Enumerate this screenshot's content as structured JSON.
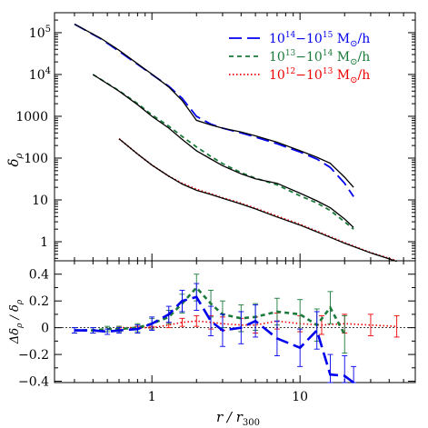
{
  "chart_data": [
    {
      "type": "line",
      "xscale": "log",
      "yscale": "log",
      "xlim": [
        0.22,
        60
      ],
      "ylim": [
        0.35,
        300000
      ],
      "ylabel_sym": "δ",
      "ylabel_sub": "ρ",
      "x_ticklabels_shown": false,
      "yticks": [
        {
          "value": 100000,
          "base": "10",
          "exp": "5"
        },
        {
          "value": 10000,
          "base": "10",
          "exp": "4"
        },
        {
          "value": 1000,
          "text": "1000"
        },
        {
          "value": 100,
          "text": "100"
        },
        {
          "value": 10,
          "text": "10"
        },
        {
          "value": 1,
          "text": "1"
        }
      ],
      "legend": {
        "placement": "top-right",
        "unit": " M",
        "unit_suffix": "/h",
        "entries": [
          {
            "series": 0,
            "base1": "10",
            "exp1": "14",
            "sep": "−",
            "base2": "10",
            "exp2": "15"
          },
          {
            "series": 1,
            "base1": "10",
            "exp1": "13",
            "sep": "−",
            "base2": "10",
            "exp2": "14"
          },
          {
            "series": 2,
            "base1": "10",
            "exp1": "12",
            "sep": "−",
            "base2": "10",
            "exp2": "13"
          }
        ]
      },
      "series": [
        {
          "color": "#0000ee",
          "dash": "long-dash",
          "group": 0,
          "x": [
            0.3,
            0.45,
            0.6,
            0.8,
            1.0,
            1.3,
            1.6,
            2.0,
            2.5,
            3.0,
            4.0,
            5.0,
            7.0,
            10.0,
            13.0,
            16.0,
            20.0,
            23.0
          ],
          "y": [
            160000,
            72000,
            36000,
            17500,
            10000,
            5200,
            2700,
            1000,
            650,
            520,
            400,
            320,
            220,
            140,
            95,
            60,
            25,
            12
          ]
        },
        {
          "color": "#000000",
          "dash": "solid",
          "group": 0,
          "x": [
            0.3,
            0.45,
            0.6,
            0.8,
            1.0,
            1.3,
            1.6,
            2.0,
            2.5,
            3.0,
            4.0,
            5.0,
            7.0,
            10.0,
            13.0,
            16.0,
            20.0,
            23.0
          ],
          "y": [
            160000,
            74000,
            38000,
            18000,
            10200,
            5000,
            2400,
            800,
            620,
            520,
            420,
            340,
            240,
            150,
            105,
            75,
            35,
            20
          ]
        },
        {
          "color": "#1a7a3a",
          "dash": "short-dash",
          "group": 1,
          "x": [
            0.4,
            0.6,
            0.8,
            1.0,
            1.3,
            1.6,
            2.0,
            2.5,
            3.0,
            4.0,
            5.0,
            7.0,
            10.0,
            13.0,
            16.0,
            20.0,
            23.0
          ],
          "y": [
            10000,
            4100,
            2000,
            1080,
            580,
            330,
            185,
            110,
            74,
            45,
            33,
            23,
            12.5,
            8.5,
            5.6,
            3.0,
            2.0
          ]
        },
        {
          "color": "#000000",
          "dash": "solid",
          "group": 1,
          "x": [
            0.4,
            0.6,
            0.8,
            1.0,
            1.3,
            1.6,
            2.0,
            2.5,
            3.0,
            4.0,
            5.0,
            7.0,
            10.0,
            13.0,
            16.0,
            20.0,
            23.0
          ],
          "y": [
            10000,
            4000,
            1900,
            1000,
            520,
            280,
            150,
            95,
            66,
            42,
            32,
            25,
            14.5,
            9.5,
            6.5,
            3.5,
            2.2
          ]
        },
        {
          "color": "#ee0000",
          "dash": "dotted",
          "group": 2,
          "x": [
            0.6,
            0.8,
            1.0,
            1.3,
            1.6,
            2.0,
            2.5,
            3.0,
            4.0,
            5.0,
            7.0,
            10.0,
            14.0,
            20.0,
            30.0,
            45.0
          ],
          "y": [
            290,
            125,
            68,
            37,
            25,
            18,
            14,
            11.3,
            8.3,
            6.3,
            4.1,
            2.6,
            1.6,
            0.95,
            0.55,
            0.35
          ]
        },
        {
          "color": "#000000",
          "dash": "solid",
          "group": 2,
          "x": [
            0.6,
            0.8,
            1.0,
            1.3,
            1.6,
            2.0,
            2.5,
            3.0,
            4.0,
            5.0,
            7.0,
            10.0,
            14.0,
            20.0,
            30.0,
            45.0
          ],
          "y": [
            290,
            125,
            68,
            37,
            24,
            17,
            13.5,
            11,
            8,
            6.1,
            3.9,
            2.5,
            1.55,
            0.92,
            0.54,
            0.34
          ]
        }
      ]
    },
    {
      "type": "line",
      "xscale": "log",
      "xlim": [
        0.22,
        60
      ],
      "ylim": [
        -0.41,
        0.5
      ],
      "xlabel": "r / r",
      "xlabel_sub": "300",
      "ylabel_parts": [
        "Δδ",
        "ρ",
        " / δ",
        "ρ"
      ],
      "yticks": [
        0.4,
        0.2,
        0,
        -0.2,
        -0.4
      ],
      "ytick_labels": [
        "0.4",
        "0.2",
        "0",
        "−0.2",
        "−0.4"
      ],
      "xticks": [
        1,
        10
      ],
      "xtick_labels": [
        "1",
        "10"
      ],
      "zero_line": true,
      "series": [
        {
          "color": "#ee0000",
          "dash": "dotted",
          "x": [
            0.6,
            0.8,
            1.0,
            1.3,
            1.6,
            2.0,
            2.5,
            3.0,
            4.0,
            5.0,
            7.0,
            10.0,
            14.0,
            20.0,
            30.0,
            45.0
          ],
          "y": [
            0.0,
            0.0,
            0.0,
            0.02,
            0.04,
            0.05,
            0.04,
            0.03,
            0.02,
            0.02,
            0.05,
            0.03,
            0.02,
            0.03,
            0.02,
            0.01
          ],
          "err": [
            0.01,
            0.01,
            0.01,
            0.02,
            0.03,
            0.04,
            0.05,
            0.05,
            0.05,
            0.06,
            0.06,
            0.06,
            0.07,
            0.07,
            0.08,
            0.08
          ]
        },
        {
          "color": "#1a7a3a",
          "dash": "short-dash",
          "x": [
            0.3,
            0.4,
            0.5,
            0.6,
            0.8,
            1.0,
            1.3,
            1.6,
            2.0,
            2.5,
            3.0,
            4.0,
            5.0,
            7.0,
            10.0,
            13.0,
            16.0,
            20.0
          ],
          "y": [
            -0.02,
            -0.02,
            -0.01,
            -0.01,
            0.0,
            0.03,
            0.08,
            0.18,
            0.3,
            0.18,
            0.1,
            0.07,
            0.08,
            0.12,
            0.1,
            0.02,
            0.15,
            -0.05
          ],
          "err": [
            0.02,
            0.02,
            0.02,
            0.02,
            0.03,
            0.04,
            0.05,
            0.07,
            0.1,
            0.1,
            0.1,
            0.1,
            0.1,
            0.1,
            0.11,
            0.12,
            0.12,
            0.14
          ]
        },
        {
          "color": "#0000ee",
          "dash": "long-dash",
          "x": [
            0.3,
            0.4,
            0.5,
            0.6,
            0.8,
            1.0,
            1.3,
            1.6,
            2.0,
            2.5,
            3.0,
            4.0,
            5.0,
            7.0,
            10.0,
            13.0,
            16.0,
            20.0,
            23.0
          ],
          "y": [
            -0.02,
            -0.02,
            -0.03,
            -0.02,
            -0.01,
            0.03,
            0.1,
            0.2,
            0.23,
            0.05,
            -0.02,
            0.0,
            0.05,
            -0.08,
            -0.15,
            -0.02,
            -0.35,
            -0.36,
            -0.45
          ],
          "err": [
            0.02,
            0.02,
            0.02,
            0.02,
            0.03,
            0.05,
            0.06,
            0.08,
            0.1,
            0.11,
            0.12,
            0.12,
            0.12,
            0.13,
            0.14,
            0.14,
            0.15,
            0.15,
            0.16
          ]
        }
      ]
    }
  ]
}
